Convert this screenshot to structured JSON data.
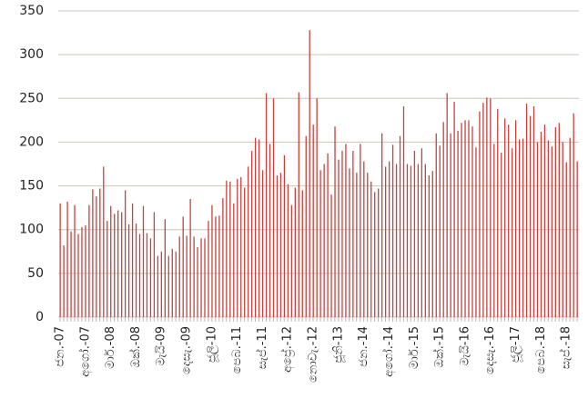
{
  "chart_data": {
    "type": "bar",
    "color": "#c8413c",
    "categories": [
      "ජන.-07",
      null,
      null,
      null,
      null,
      null,
      null,
      "අගෝ.-07",
      null,
      null,
      null,
      null,
      null,
      null,
      "මාර්.-08",
      null,
      null,
      null,
      null,
      null,
      null,
      "ඔක්.-08",
      null,
      null,
      null,
      null,
      null,
      null,
      "මැයි-09",
      null,
      null,
      null,
      null,
      null,
      null,
      "දෙසැ.-09",
      null,
      null,
      null,
      null,
      null,
      null,
      "ජූලි-10",
      null,
      null,
      null,
      null,
      null,
      null,
      "පෙබ.-11",
      null,
      null,
      null,
      null,
      null,
      null,
      "සැප්.-11",
      null,
      null,
      null,
      null,
      null,
      null,
      "අප්‍රේ.-12",
      null,
      null,
      null,
      null,
      null,
      null,
      "නොවැ.-12",
      null,
      null,
      null,
      null,
      null,
      null,
      "ජූනි-13",
      null,
      null,
      null,
      null,
      null,
      null,
      "ජන.-14",
      null,
      null,
      null,
      null,
      null,
      null,
      "අගෝ.-14",
      null,
      null,
      null,
      null,
      null,
      null,
      "මාර්.-15",
      null,
      null,
      null,
      null,
      null,
      null,
      "ඔක්.-15",
      null,
      null,
      null,
      null,
      null,
      null,
      "මැයි-16",
      null,
      null,
      null,
      null,
      null,
      null,
      "දෙසැ.-16",
      null,
      null,
      null,
      null,
      null,
      null,
      "ජූලි-17",
      null,
      null,
      null,
      null,
      null,
      null,
      "පෙබ.-18",
      null,
      null,
      null,
      null,
      null,
      null,
      "සැප්.-18",
      null,
      null,
      null
    ],
    "values": [
      130,
      82,
      132,
      98,
      128,
      95,
      103,
      105,
      128,
      146,
      138,
      147,
      172,
      110,
      127,
      118,
      122,
      120,
      145,
      106,
      130,
      107,
      95,
      127,
      96,
      90,
      120,
      70,
      75,
      112,
      70,
      78,
      75,
      92,
      115,
      93,
      135,
      92,
      80,
      90,
      90,
      110,
      128,
      115,
      116,
      136,
      156,
      155,
      130,
      158,
      160,
      148,
      172,
      190,
      205,
      203,
      168,
      256,
      198,
      250,
      162,
      165,
      185,
      152,
      128,
      148,
      257,
      145,
      207,
      328,
      220,
      250,
      168,
      175,
      187,
      140,
      218,
      180,
      190,
      198,
      170,
      190,
      165,
      198,
      178,
      165,
      155,
      143,
      147,
      210,
      172,
      178,
      197,
      175,
      207,
      241,
      175,
      173,
      190,
      175,
      193,
      175,
      162,
      167,
      210,
      196,
      223,
      256,
      210,
      246,
      213,
      222,
      225,
      225,
      218,
      194,
      235,
      245,
      251,
      250,
      198,
      238,
      188,
      227,
      220,
      193,
      225,
      203,
      204,
      244,
      230,
      241,
      200,
      212,
      220,
      202,
      195,
      217,
      222,
      200,
      177,
      205,
      233,
      178
    ],
    "ylim": [
      0,
      350
    ],
    "yticks": [
      0,
      50,
      100,
      150,
      200,
      250,
      300,
      350
    ],
    "grid": true
  }
}
